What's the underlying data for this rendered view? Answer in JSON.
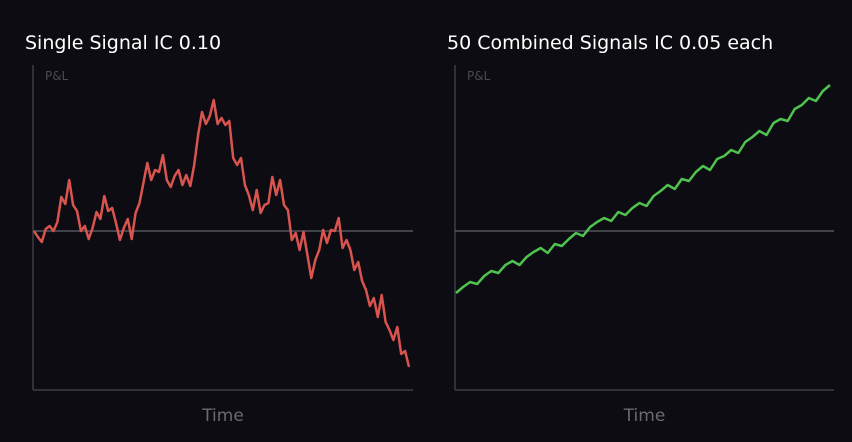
{
  "chart_data": [
    {
      "type": "line",
      "title": "Single Signal IC 0.10",
      "ylabel": "P&L",
      "xlabel": "Time",
      "ylim": [
        -15.9,
        16.6
      ],
      "series": [
        {
          "color": "#d9544f",
          "values": [
            0,
            -0.6,
            -1.1,
            0.2,
            0.5,
            0,
            0.9,
            3.4,
            2.7,
            5.1,
            2.6,
            2.0,
            0,
            0.5,
            -0.8,
            0.3,
            1.9,
            1.2,
            3.5,
            2.0,
            2.3,
            0.8,
            -0.9,
            0.3,
            1.2,
            -0.8,
            1.8,
            2.8,
            4.8,
            6.8,
            5.1,
            6.1,
            5.9,
            7.6,
            5.1,
            4.4,
            5.5,
            6.1,
            4.6,
            5.6,
            4.5,
            6.6,
            9.6,
            11.9,
            10.7,
            11.5,
            13.1,
            10.7,
            11.3,
            10.6,
            11.0,
            7.3,
            6.6,
            7.3,
            4.6,
            3.6,
            2.1,
            4.1,
            1.8,
            2.6,
            2.8,
            5.4,
            3.6,
            5.1,
            2.6,
            2.1,
            -0.9,
            -0.2,
            -1.9,
            -0.1,
            -2.4,
            -4.7,
            -2.9,
            -1.9,
            0.1,
            -1.2,
            0.1,
            0,
            1.3,
            -1.7,
            -0.9,
            -1.9,
            -3.9,
            -3.1,
            -5.0,
            -5.9,
            -7.5,
            -6.7,
            -8.6,
            -6.4,
            -9.1,
            -9.9,
            -10.9,
            -9.6,
            -12.3,
            -12.0,
            -13.6
          ]
        }
      ]
    },
    {
      "type": "line",
      "title": "50 Combined Signals IC 0.05 each",
      "ylabel": "P&L",
      "xlabel": "Time",
      "ylim": [
        -15.9,
        16.6
      ],
      "series": [
        {
          "color": "#4fc24f",
          "values": [
            -6.2,
            -5.6,
            -5.1,
            -5.3,
            -4.5,
            -4.0,
            -4.2,
            -3.4,
            -3.0,
            -3.4,
            -2.6,
            -2.1,
            -1.7,
            -2.2,
            -1.3,
            -1.5,
            -0.8,
            -0.2,
            -0.5,
            0.4,
            0.9,
            1.3,
            1.0,
            1.9,
            1.6,
            2.3,
            2.8,
            2.5,
            3.5,
            4.0,
            4.6,
            4.2,
            5.2,
            5.0,
            5.9,
            6.5,
            6.1,
            7.2,
            7.5,
            8.1,
            7.8,
            8.9,
            9.4,
            10.0,
            9.6,
            10.8,
            11.2,
            11.0,
            12.2,
            12.6,
            13.3,
            13.0,
            14.0,
            14.6
          ]
        }
      ]
    }
  ]
}
